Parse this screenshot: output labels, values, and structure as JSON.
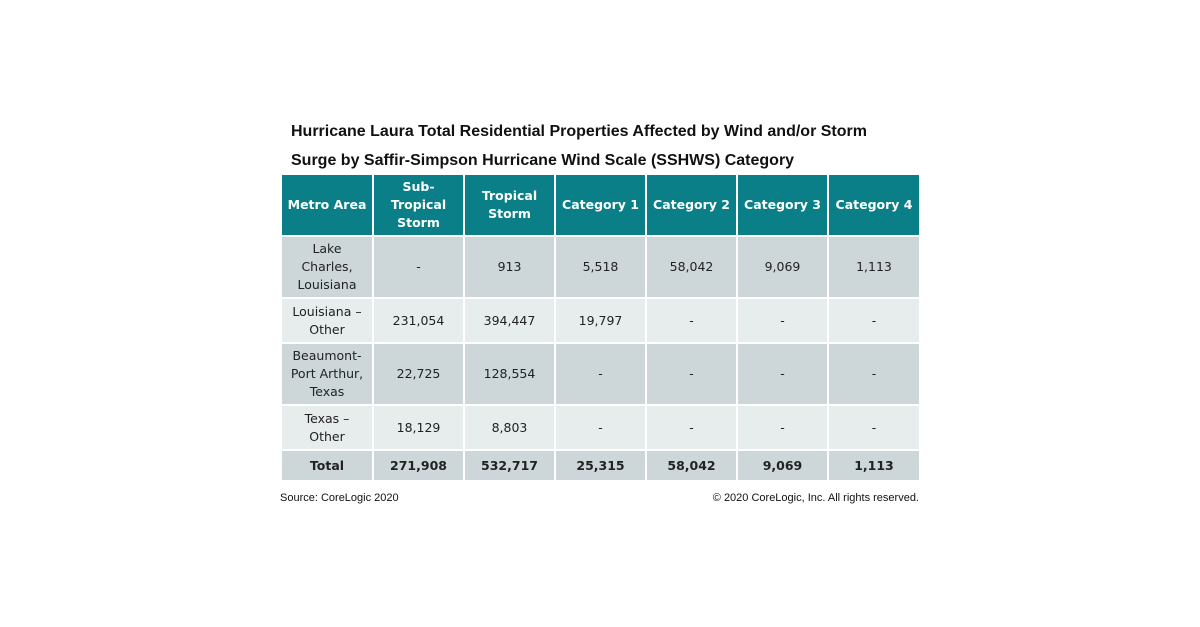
{
  "title_line1": "Hurricane Laura Total Residential Properties Affected by Wind and/or Storm",
  "title_line2": "Surge by Saffir-Simpson Hurricane Wind Scale (SSHWS) Category",
  "table": {
    "headers": [
      "Metro Area",
      "Sub-Tropical Storm",
      "Tropical Storm",
      "Category 1",
      "Category 2",
      "Category 3",
      "Category 4"
    ],
    "rows": [
      [
        "Lake Charles, Louisiana",
        "-",
        "913",
        "5,518",
        "58,042",
        "9,069",
        "1,113"
      ],
      [
        "Louisiana – Other",
        "231,054",
        "394,447",
        "19,797",
        "-",
        "-",
        "-"
      ],
      [
        "Beaumont-Port Arthur, Texas",
        "22,725",
        "128,554",
        "-",
        "-",
        "-",
        "-"
      ],
      [
        "Texas – Other",
        "18,129",
        "8,803",
        "-",
        "-",
        "-",
        "-"
      ]
    ],
    "total": [
      "Total",
      "271,908",
      "532,717",
      "25,315",
      "58,042",
      "9,069",
      "1,113"
    ]
  },
  "source": "Source: CoreLogic 2020",
  "copyright": "© 2020 CoreLogic, Inc. All rights reserved.",
  "colors": {
    "header_bg": "#0b7f87",
    "row_dark": "#cdd7d9",
    "row_light": "#e7ecec"
  }
}
